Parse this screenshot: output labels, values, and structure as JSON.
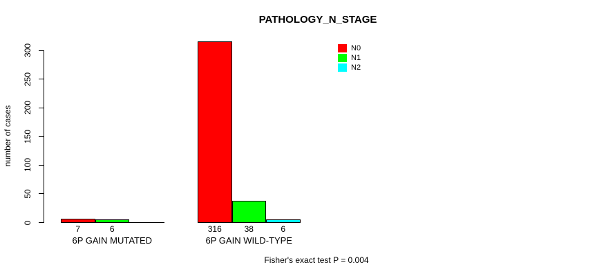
{
  "title": "PATHOLOGY_N_STAGE",
  "footer": "Fisher's exact test P = 0.004",
  "chart_data": {
    "type": "bar",
    "title": "PATHOLOGY_N_STAGE",
    "xlabel": "",
    "ylabel": "number of cases",
    "ylim": [
      0,
      300
    ],
    "yticks": [
      0,
      50,
      100,
      150,
      200,
      250,
      300
    ],
    "grid": false,
    "legend_position": "top-right",
    "categories": [
      "6P GAIN MUTATED",
      "6P GAIN WILD-TYPE"
    ],
    "series": [
      {
        "name": "N0",
        "color": "#ff0000",
        "values": [
          7,
          316
        ]
      },
      {
        "name": "N1",
        "color": "#00ff00",
        "values": [
          6,
          38
        ]
      },
      {
        "name": "N2",
        "color": "#00ffff",
        "values": [
          0,
          6
        ]
      }
    ],
    "annotation": "Fisher's exact test P = 0.004"
  }
}
